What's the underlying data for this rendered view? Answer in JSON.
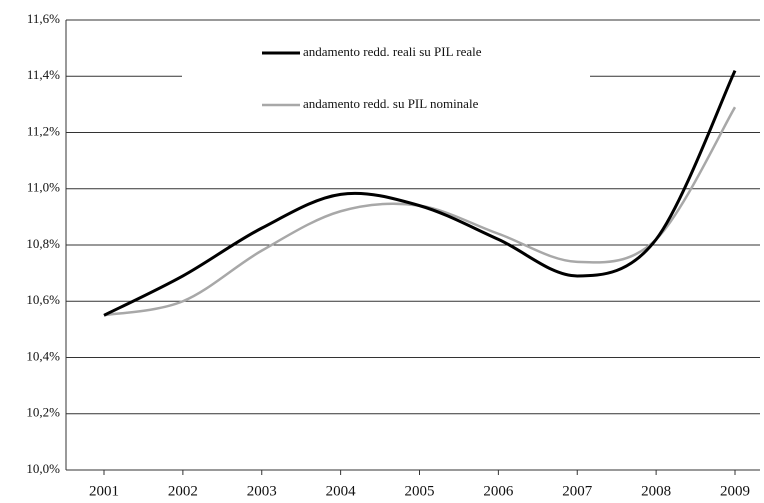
{
  "chart_data": {
    "type": "line",
    "categories": [
      "2001",
      "2002",
      "2003",
      "2004",
      "2005",
      "2006",
      "2007",
      "2008",
      "2009"
    ],
    "series": [
      {
        "name": "andamento redd. reali su PIL reale",
        "color": "#000000",
        "values": [
          10.55,
          10.69,
          10.86,
          10.98,
          10.94,
          10.82,
          10.69,
          10.82,
          11.42
        ]
      },
      {
        "name": "andamento redd. su PIL nominale",
        "color": "#a8a8a8",
        "values": [
          10.55,
          10.6,
          10.78,
          10.92,
          10.94,
          10.84,
          10.74,
          10.82,
          11.29
        ]
      }
    ],
    "ylim": [
      10.0,
      11.6
    ],
    "yticks": [
      {
        "value": 10.0,
        "label": "10,0%"
      },
      {
        "value": 10.2,
        "label": "10,2%"
      },
      {
        "value": 10.4,
        "label": "10,4%"
      },
      {
        "value": 10.6,
        "label": "10,6%"
      },
      {
        "value": 10.8,
        "label": "10,8%"
      },
      {
        "value": 11.0,
        "label": "11,0%"
      },
      {
        "value": 11.2,
        "label": "11,2%"
      },
      {
        "value": 11.4,
        "label": "11,4%"
      },
      {
        "value": 11.6,
        "label": "11,6%"
      }
    ],
    "grid": true
  }
}
